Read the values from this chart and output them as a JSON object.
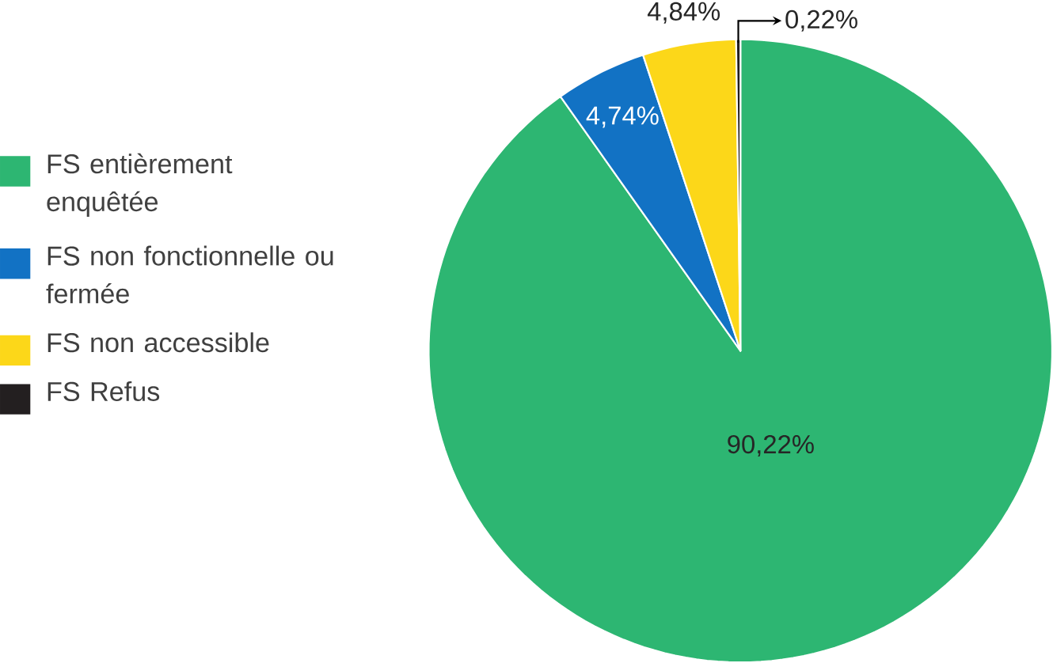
{
  "chart_data": {
    "type": "pie",
    "categories": [
      "FS entièrement enquêtée",
      "FS non fonctionnelle ou fermée",
      "FS non accessible",
      "FS Refus"
    ],
    "values": [
      90.22,
      4.74,
      4.84,
      0.22
    ],
    "value_labels": [
      "90,22%",
      "4,74%",
      "4,84%",
      "0,22%"
    ],
    "colors": [
      "#2db672",
      "#1272c4",
      "#fcd719",
      "#231f20"
    ],
    "legend": "left"
  }
}
